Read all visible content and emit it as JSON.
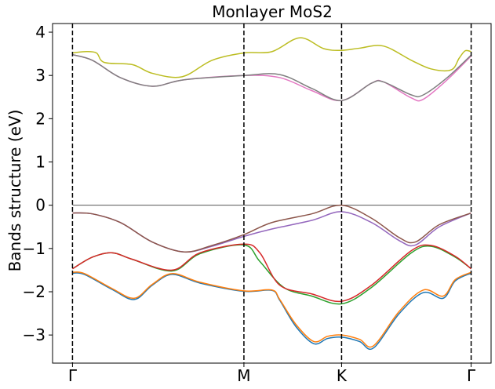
{
  "chart_data": {
    "type": "line",
    "title": "Monlayer MoS2",
    "xlabel": "",
    "ylabel": "Bands structure (eV)",
    "xlim": [
      -0.05,
      1.05
    ],
    "ylim": [
      -3.65,
      4.2
    ],
    "x_ticks": [
      {
        "pos": 0.0,
        "label": "Γ"
      },
      {
        "pos": 0.43,
        "label": "M"
      },
      {
        "pos": 0.675,
        "label": "K"
      },
      {
        "pos": 1.0,
        "label": "Γ"
      }
    ],
    "y_ticks": [
      {
        "pos": -3,
        "label": "−3"
      },
      {
        "pos": -2,
        "label": "−2"
      },
      {
        "pos": -1,
        "label": "−1"
      },
      {
        "pos": 0,
        "label": "0"
      },
      {
        "pos": 1,
        "label": "1"
      },
      {
        "pos": 2,
        "label": "2"
      },
      {
        "pos": 3,
        "label": "3"
      },
      {
        "pos": 4,
        "label": "4"
      }
    ],
    "fermi_level": 0,
    "high_symmetry_lines": [
      0.0,
      0.43,
      0.675,
      1.0
    ],
    "series": [
      {
        "color": "#1f77b4",
        "points": [
          [
            0,
            -1.57
          ],
          [
            0.03,
            -1.6
          ],
          [
            0.1,
            -1.95
          ],
          [
            0.155,
            -2.18
          ],
          [
            0.2,
            -1.85
          ],
          [
            0.25,
            -1.6
          ],
          [
            0.32,
            -1.8
          ],
          [
            0.43,
            -1.99
          ],
          [
            0.5,
            -1.97
          ],
          [
            0.52,
            -2.2
          ],
          [
            0.56,
            -2.8
          ],
          [
            0.605,
            -3.2
          ],
          [
            0.64,
            -3.08
          ],
          [
            0.675,
            -3.05
          ],
          [
            0.72,
            -3.15
          ],
          [
            0.755,
            -3.3
          ],
          [
            0.82,
            -2.5
          ],
          [
            0.88,
            -2.02
          ],
          [
            0.93,
            -2.15
          ],
          [
            0.96,
            -1.75
          ],
          [
            1.0,
            -1.57
          ]
        ]
      },
      {
        "color": "#ff7f0e",
        "points": [
          [
            0,
            -1.55
          ],
          [
            0.03,
            -1.58
          ],
          [
            0.1,
            -1.93
          ],
          [
            0.155,
            -2.15
          ],
          [
            0.2,
            -1.83
          ],
          [
            0.25,
            -1.58
          ],
          [
            0.32,
            -1.78
          ],
          [
            0.43,
            -1.98
          ],
          [
            0.5,
            -1.96
          ],
          [
            0.52,
            -2.18
          ],
          [
            0.56,
            -2.75
          ],
          [
            0.605,
            -3.15
          ],
          [
            0.64,
            -3.03
          ],
          [
            0.675,
            -3.0
          ],
          [
            0.72,
            -3.1
          ],
          [
            0.755,
            -3.25
          ],
          [
            0.82,
            -2.45
          ],
          [
            0.88,
            -1.96
          ],
          [
            0.93,
            -2.1
          ],
          [
            0.96,
            -1.72
          ],
          [
            1.0,
            -1.55
          ]
        ]
      },
      {
        "color": "#2ca02c",
        "points": [
          [
            0,
            -1.47
          ],
          [
            0.05,
            -1.2
          ],
          [
            0.1,
            -1.1
          ],
          [
            0.15,
            -1.25
          ],
          [
            0.25,
            -1.52
          ],
          [
            0.32,
            -1.12
          ],
          [
            0.43,
            -0.92
          ],
          [
            0.47,
            -1.3
          ],
          [
            0.53,
            -1.9
          ],
          [
            0.6,
            -2.1
          ],
          [
            0.675,
            -2.28
          ],
          [
            0.75,
            -1.9
          ],
          [
            0.85,
            -1.1
          ],
          [
            0.9,
            -0.95
          ],
          [
            0.96,
            -1.2
          ],
          [
            1.0,
            -1.47
          ]
        ]
      },
      {
        "color": "#d62728",
        "points": [
          [
            0,
            -1.47
          ],
          [
            0.05,
            -1.2
          ],
          [
            0.1,
            -1.1
          ],
          [
            0.15,
            -1.25
          ],
          [
            0.25,
            -1.5
          ],
          [
            0.32,
            -1.1
          ],
          [
            0.43,
            -0.9
          ],
          [
            0.47,
            -1.1
          ],
          [
            0.52,
            -1.85
          ],
          [
            0.6,
            -2.05
          ],
          [
            0.675,
            -2.22
          ],
          [
            0.75,
            -1.85
          ],
          [
            0.85,
            -1.05
          ],
          [
            0.9,
            -0.93
          ],
          [
            0.96,
            -1.18
          ],
          [
            1.0,
            -1.47
          ]
        ]
      },
      {
        "color": "#9467bd",
        "points": [
          [
            0,
            -0.18
          ],
          [
            0.05,
            -0.2
          ],
          [
            0.12,
            -0.4
          ],
          [
            0.2,
            -0.85
          ],
          [
            0.28,
            -1.08
          ],
          [
            0.35,
            -0.95
          ],
          [
            0.43,
            -0.72
          ],
          [
            0.5,
            -0.55
          ],
          [
            0.6,
            -0.35
          ],
          [
            0.675,
            -0.15
          ],
          [
            0.75,
            -0.4
          ],
          [
            0.82,
            -0.82
          ],
          [
            0.86,
            -0.92
          ],
          [
            0.92,
            -0.5
          ],
          [
            1.0,
            -0.18
          ]
        ]
      },
      {
        "color": "#8c564b",
        "points": [
          [
            0,
            -0.18
          ],
          [
            0.05,
            -0.2
          ],
          [
            0.12,
            -0.4
          ],
          [
            0.2,
            -0.85
          ],
          [
            0.28,
            -1.08
          ],
          [
            0.35,
            -0.93
          ],
          [
            0.43,
            -0.68
          ],
          [
            0.5,
            -0.4
          ],
          [
            0.6,
            -0.2
          ],
          [
            0.675,
            0.0
          ],
          [
            0.75,
            -0.3
          ],
          [
            0.82,
            -0.75
          ],
          [
            0.86,
            -0.85
          ],
          [
            0.92,
            -0.45
          ],
          [
            1.0,
            -0.18
          ]
        ]
      },
      {
        "color": "#e377c2",
        "points": [
          [
            0,
            3.48
          ],
          [
            0.05,
            3.35
          ],
          [
            0.12,
            2.95
          ],
          [
            0.2,
            2.75
          ],
          [
            0.28,
            2.9
          ],
          [
            0.43,
            3.0
          ],
          [
            0.52,
            2.95
          ],
          [
            0.6,
            2.65
          ],
          [
            0.675,
            2.42
          ],
          [
            0.75,
            2.82
          ],
          [
            0.78,
            2.85
          ],
          [
            0.85,
            2.48
          ],
          [
            0.88,
            2.45
          ],
          [
            0.94,
            2.9
          ],
          [
            1.0,
            3.45
          ]
        ]
      },
      {
        "color": "#7f7f7f",
        "points": [
          [
            0,
            3.48
          ],
          [
            0.05,
            3.35
          ],
          [
            0.12,
            2.95
          ],
          [
            0.2,
            2.75
          ],
          [
            0.28,
            2.9
          ],
          [
            0.43,
            3.0
          ],
          [
            0.52,
            3.02
          ],
          [
            0.6,
            2.7
          ],
          [
            0.675,
            2.42
          ],
          [
            0.75,
            2.82
          ],
          [
            0.78,
            2.85
          ],
          [
            0.85,
            2.55
          ],
          [
            0.88,
            2.55
          ],
          [
            0.94,
            2.95
          ],
          [
            1.0,
            3.47
          ]
        ]
      },
      {
        "color": "#bcbd22",
        "points": [
          [
            0,
            3.52
          ],
          [
            0.03,
            3.55
          ],
          [
            0.06,
            3.52
          ],
          [
            0.08,
            3.3
          ],
          [
            0.15,
            3.25
          ],
          [
            0.2,
            3.05
          ],
          [
            0.275,
            2.97
          ],
          [
            0.35,
            3.35
          ],
          [
            0.43,
            3.52
          ],
          [
            0.5,
            3.55
          ],
          [
            0.57,
            3.87
          ],
          [
            0.63,
            3.62
          ],
          [
            0.675,
            3.58
          ],
          [
            0.72,
            3.63
          ],
          [
            0.78,
            3.68
          ],
          [
            0.85,
            3.35
          ],
          [
            0.9,
            3.15
          ],
          [
            0.95,
            3.13
          ],
          [
            0.97,
            3.4
          ],
          [
            0.985,
            3.57
          ],
          [
            1.0,
            3.55
          ]
        ]
      }
    ]
  }
}
